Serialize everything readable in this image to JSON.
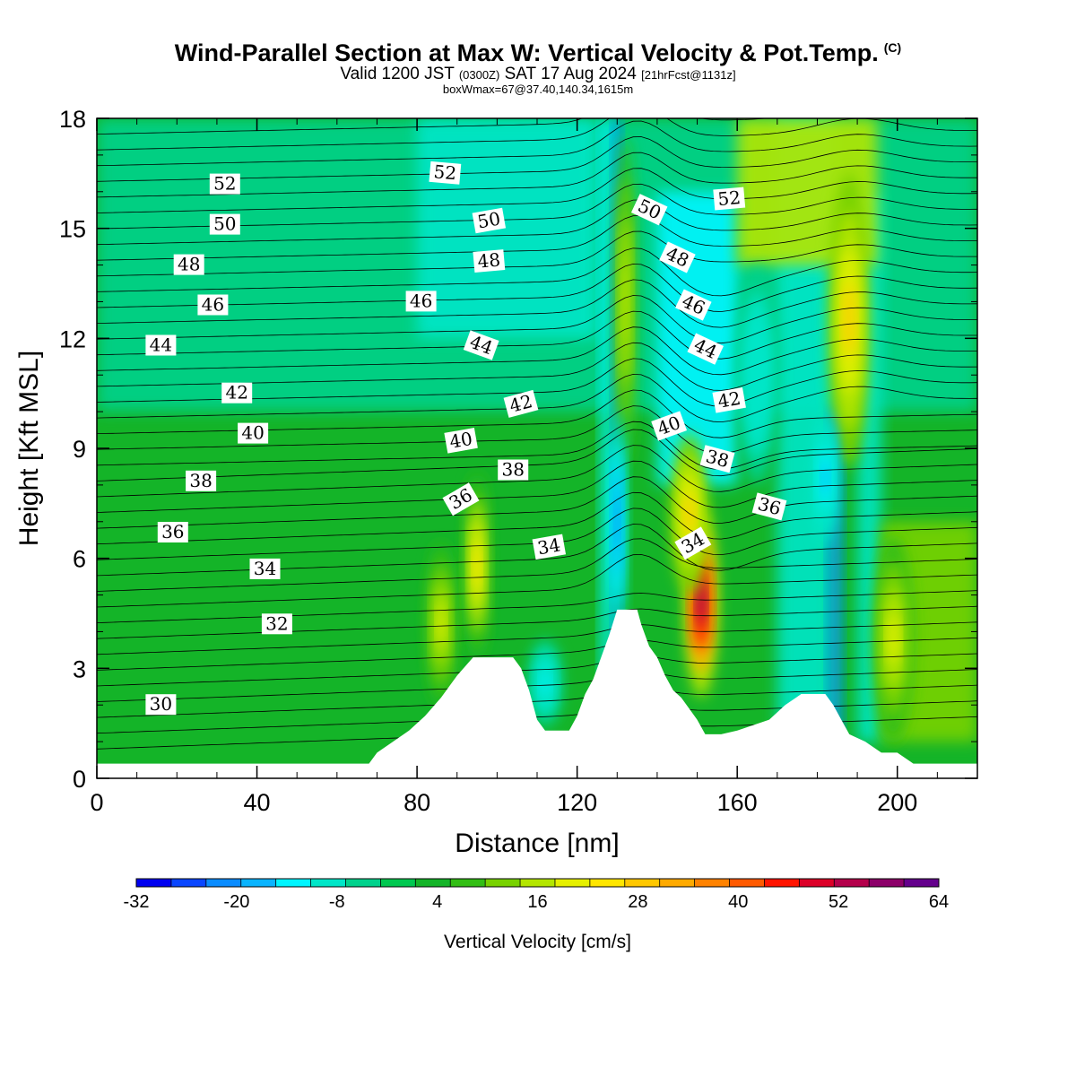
{
  "chart_data": {
    "type": "heatmap",
    "title": "Wind-Parallel Section at Max W: Vertical Velocity & Pot.Temp.",
    "title_mark": "(C)",
    "subtitle_valid": "Valid 1200 JST",
    "subtitle_utc": "(0300Z)",
    "subtitle_date": "SAT 17 Aug 2024",
    "subtitle_fcst": "[21hrFcst@1131z]",
    "subtitle_box": "boxWmax=67@37.40,140.34,1615m",
    "xlabel": "Distance [nm]",
    "ylabel": "Height [Kft MSL]",
    "xlim": [
      0,
      220
    ],
    "ylim": [
      0,
      18
    ],
    "x_ticks": [
      "0",
      "40",
      "80",
      "120",
      "160",
      "200"
    ],
    "y_ticks": [
      "0",
      "3",
      "6",
      "9",
      "12",
      "15",
      "18"
    ],
    "colorbar": {
      "label": "Vertical Velocity [cm/s]",
      "range": [
        -32,
        64
      ],
      "tick_labels": [
        "-32",
        "-20",
        "-8",
        "4",
        "16",
        "28",
        "40",
        "52",
        "64"
      ],
      "colors": [
        "#0000f0",
        "#0a46ff",
        "#0a8cff",
        "#0ab4ff",
        "#00f5ff",
        "#00e6c8",
        "#00d28c",
        "#00c850",
        "#14b428",
        "#32be14",
        "#78d200",
        "#b4e600",
        "#e6f000",
        "#ffe600",
        "#ffc800",
        "#ffaa00",
        "#ff8200",
        "#ff5a00",
        "#ff1400",
        "#dc0028",
        "#b4004b",
        "#8c0069",
        "#64008c"
      ]
    },
    "terrain_kft": [
      [
        0,
        0.4
      ],
      [
        20,
        0.4
      ],
      [
        40,
        0.4
      ],
      [
        60,
        0.4
      ],
      [
        68,
        0.4
      ],
      [
        70,
        0.7
      ],
      [
        74,
        1.0
      ],
      [
        78,
        1.3
      ],
      [
        82,
        1.7
      ],
      [
        86,
        2.2
      ],
      [
        90,
        2.8
      ],
      [
        94,
        3.3
      ],
      [
        104,
        3.3
      ],
      [
        106,
        3.0
      ],
      [
        108,
        2.4
      ],
      [
        110,
        1.6
      ],
      [
        112,
        1.3
      ],
      [
        118,
        1.3
      ],
      [
        120,
        1.7
      ],
      [
        122,
        2.3
      ],
      [
        124,
        2.7
      ],
      [
        126,
        3.3
      ],
      [
        128,
        3.9
      ],
      [
        130,
        4.6
      ],
      [
        135,
        4.6
      ],
      [
        136,
        4.2
      ],
      [
        138,
        3.6
      ],
      [
        140,
        3.3
      ],
      [
        142,
        2.8
      ],
      [
        144,
        2.4
      ],
      [
        146,
        2.2
      ],
      [
        148,
        1.9
      ],
      [
        150,
        1.6
      ],
      [
        152,
        1.2
      ],
      [
        156,
        1.2
      ],
      [
        160,
        1.3
      ],
      [
        168,
        1.6
      ],
      [
        172,
        2.0
      ],
      [
        176,
        2.3
      ],
      [
        182,
        2.3
      ],
      [
        184,
        2.0
      ],
      [
        186,
        1.6
      ],
      [
        188,
        1.2
      ],
      [
        192,
        1.0
      ],
      [
        196,
        0.7
      ],
      [
        200,
        0.7
      ],
      [
        204,
        0.4
      ],
      [
        212,
        0.4
      ],
      [
        220,
        0.4
      ]
    ],
    "theta_labels": [
      {
        "text": "52",
        "x": 32,
        "y": 16.2,
        "rot": 0
      },
      {
        "text": "50",
        "x": 32,
        "y": 15.1,
        "rot": 0
      },
      {
        "text": "48",
        "x": 23,
        "y": 14.0,
        "rot": 0
      },
      {
        "text": "46",
        "x": 29,
        "y": 12.9,
        "rot": 0
      },
      {
        "text": "44",
        "x": 16,
        "y": 11.8,
        "rot": 0
      },
      {
        "text": "42",
        "x": 35,
        "y": 10.5,
        "rot": 0
      },
      {
        "text": "40",
        "x": 39,
        "y": 9.4,
        "rot": 0
      },
      {
        "text": "38",
        "x": 26,
        "y": 8.1,
        "rot": 0
      },
      {
        "text": "36",
        "x": 19,
        "y": 6.7,
        "rot": 0
      },
      {
        "text": "34",
        "x": 42,
        "y": 5.7,
        "rot": 0
      },
      {
        "text": "32",
        "x": 45,
        "y": 4.2,
        "rot": 0
      },
      {
        "text": "30",
        "x": 16,
        "y": 2.0,
        "rot": 0
      },
      {
        "text": "52",
        "x": 87,
        "y": 16.5,
        "rot": 5
      },
      {
        "text": "50",
        "x": 98,
        "y": 15.2,
        "rot": -10
      },
      {
        "text": "48",
        "x": 98,
        "y": 14.1,
        "rot": -5
      },
      {
        "text": "46",
        "x": 81,
        "y": 13.0,
        "rot": 0
      },
      {
        "text": "44",
        "x": 96,
        "y": 11.8,
        "rot": 20
      },
      {
        "text": "42",
        "x": 106,
        "y": 10.2,
        "rot": -15
      },
      {
        "text": "40",
        "x": 91,
        "y": 9.2,
        "rot": -10
      },
      {
        "text": "38",
        "x": 104,
        "y": 8.4,
        "rot": 0
      },
      {
        "text": "36",
        "x": 91,
        "y": 7.6,
        "rot": -30
      },
      {
        "text": "34",
        "x": 113,
        "y": 6.3,
        "rot": -10
      },
      {
        "text": "50",
        "x": 138,
        "y": 15.5,
        "rot": 25
      },
      {
        "text": "48",
        "x": 145,
        "y": 14.2,
        "rot": 25
      },
      {
        "text": "46",
        "x": 149,
        "y": 12.9,
        "rot": 25
      },
      {
        "text": "44",
        "x": 152,
        "y": 11.7,
        "rot": 25
      },
      {
        "text": "42",
        "x": 158,
        "y": 10.3,
        "rot": -10
      },
      {
        "text": "40",
        "x": 143,
        "y": 9.6,
        "rot": -20
      },
      {
        "text": "38",
        "x": 155,
        "y": 8.7,
        "rot": 15
      },
      {
        "text": "36",
        "x": 168,
        "y": 7.4,
        "rot": 15
      },
      {
        "text": "34",
        "x": 149,
        "y": 6.4,
        "rot": -30
      },
      {
        "text": "52",
        "x": 158,
        "y": 15.8,
        "rot": -5
      }
    ],
    "blobs": [
      {
        "cx": 95,
        "cy": 5.8,
        "rx": 3,
        "ry": 2.5,
        "v": 26
      },
      {
        "cx": 86,
        "cy": 4.2,
        "rx": 3.5,
        "ry": 2.2,
        "v": 20
      },
      {
        "cx": 132,
        "cy": 13,
        "rx": 2.5,
        "ry": 4.5,
        "v": 18
      },
      {
        "cx": 151,
        "cy": 4.8,
        "rx": 4,
        "ry": 2.6,
        "v": 58
      },
      {
        "cx": 148,
        "cy": 7.2,
        "rx": 4.5,
        "ry": 2.2,
        "v": 28
      },
      {
        "cx": 188,
        "cy": 12.5,
        "rx": 5,
        "ry": 4,
        "v": 28
      },
      {
        "cx": 199,
        "cy": 3.8,
        "rx": 5,
        "ry": 2.8,
        "v": 22
      },
      {
        "cx": 130,
        "cy": 7,
        "rx": 2,
        "ry": 3,
        "v": -20
      },
      {
        "cx": 182,
        "cy": 8.2,
        "rx": 3,
        "ry": 1.8,
        "v": -18
      },
      {
        "cx": 112,
        "cy": 2.6,
        "rx": 4,
        "ry": 1.2,
        "v": -12
      },
      {
        "cx": 165,
        "cy": 11,
        "rx": 5,
        "ry": 3,
        "v": -10
      }
    ]
  }
}
